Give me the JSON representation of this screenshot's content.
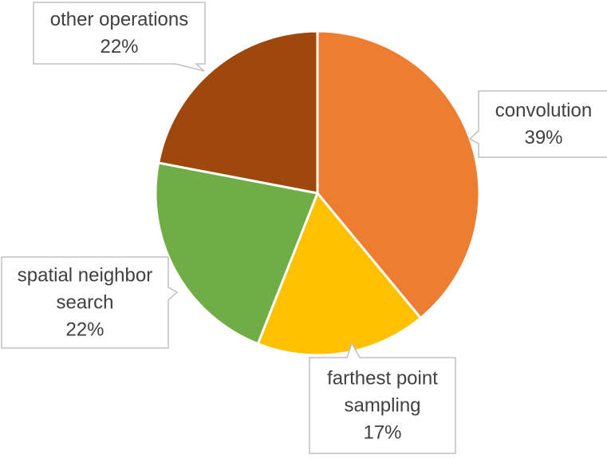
{
  "chart_data": {
    "type": "pie",
    "title": "",
    "slices": [
      {
        "label_lines": [
          "convolution"
        ],
        "value": 39,
        "value_label": "39%",
        "color": "#ED7D31"
      },
      {
        "label_lines": [
          "farthest point",
          "sampling"
        ],
        "value": 17,
        "value_label": "17%",
        "color": "#FFC000"
      },
      {
        "label_lines": [
          "spatial neighbor",
          "search"
        ],
        "value": 22,
        "value_label": "22%",
        "color": "#70AD47"
      },
      {
        "label_lines": [
          "other operations"
        ],
        "value": 22,
        "value_label": "22%",
        "color": "#9E480E"
      }
    ],
    "start_angle": "12 o'clock",
    "direction": "clockwise",
    "label_style": "callout boxes with leader lines",
    "legend": "none"
  }
}
